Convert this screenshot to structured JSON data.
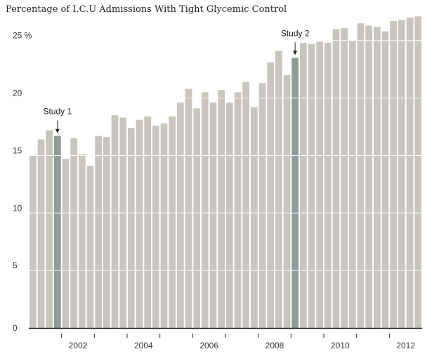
{
  "chart_data": {
    "type": "bar",
    "title": "Percentage of I.C.U Admissions With Tight Glycemic Control",
    "xlabel": "",
    "ylabel": "",
    "ylim": [
      0,
      27
    ],
    "y_ticks": [
      {
        "value": 0,
        "label": "0"
      },
      {
        "value": 5,
        "label": "5"
      },
      {
        "value": 10,
        "label": "10"
      },
      {
        "value": 15,
        "label": "15"
      },
      {
        "value": 20,
        "label": "20"
      },
      {
        "value": 25,
        "label": "25 %"
      }
    ],
    "x_tick_labels": [
      "2002",
      "2004",
      "2006",
      "2008",
      "2010",
      "2012"
    ],
    "grid": true,
    "colors": {
      "bar": "#c8c4be",
      "highlight": "#8f9a9a",
      "grid": "#ffffff",
      "axis": "#222222"
    },
    "values": [
      15.0,
      16.4,
      17.2,
      16.7,
      14.7,
      16.5,
      15.1,
      14.1,
      16.7,
      16.6,
      18.5,
      18.3,
      17.4,
      18.1,
      18.4,
      17.6,
      17.8,
      18.4,
      19.6,
      20.8,
      19.1,
      20.5,
      19.6,
      20.7,
      19.6,
      20.5,
      21.4,
      19.2,
      21.3,
      23.1,
      24.1,
      22.0,
      23.5,
      24.8,
      24.7,
      24.9,
      24.8,
      26.0,
      26.1,
      25.0,
      26.5,
      26.3,
      26.2,
      25.8,
      26.7,
      26.8,
      27.0,
      27.1
    ],
    "highlight_indices": [
      3,
      32
    ],
    "annotations": [
      {
        "label": "Study 1",
        "bar_index": 3
      },
      {
        "label": "Study 2",
        "bar_index": 32
      }
    ]
  }
}
